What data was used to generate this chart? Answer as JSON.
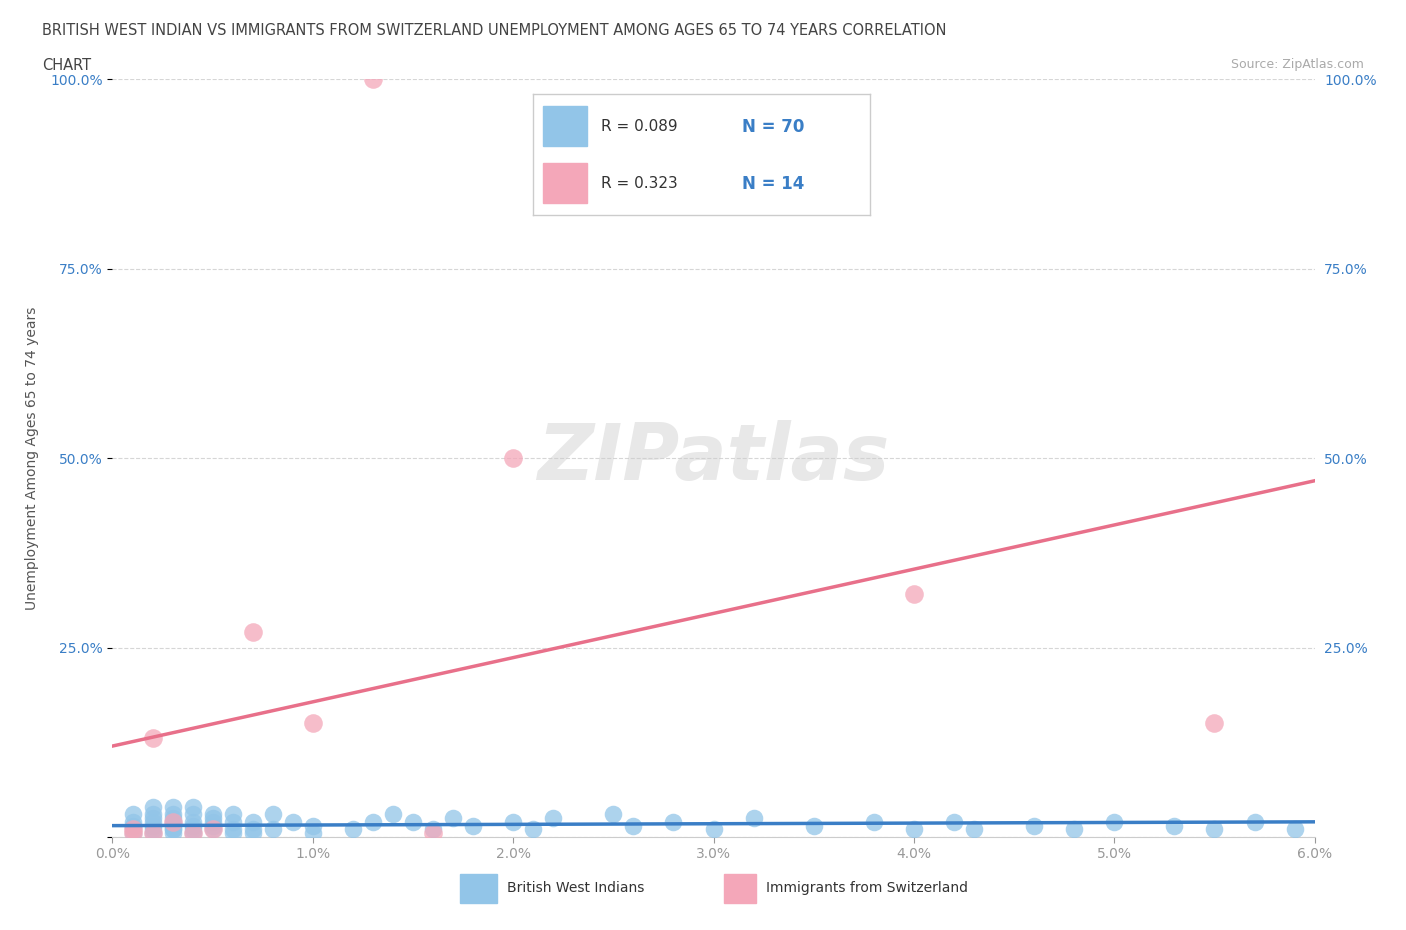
{
  "title_line1": "BRITISH WEST INDIAN VS IMMIGRANTS FROM SWITZERLAND UNEMPLOYMENT AMONG AGES 65 TO 74 YEARS CORRELATION",
  "title_line2": "CHART",
  "source": "Source: ZipAtlas.com",
  "ylabel": "Unemployment Among Ages 65 to 74 years",
  "xlim": [
    0.0,
    0.06
  ],
  "ylim": [
    0.0,
    1.0
  ],
  "xticks": [
    0.0,
    0.01,
    0.02,
    0.03,
    0.04,
    0.05,
    0.06
  ],
  "xticklabels": [
    "0.0%",
    "1.0%",
    "2.0%",
    "3.0%",
    "4.0%",
    "5.0%",
    "6.0%"
  ],
  "yticks": [
    0.0,
    0.25,
    0.5,
    0.75,
    1.0
  ],
  "yticklabels": [
    "",
    "25.0%",
    "50.0%",
    "75.0%",
    "100.0%"
  ],
  "blue_R": 0.089,
  "blue_N": 70,
  "pink_R": 0.323,
  "pink_N": 14,
  "blue_color": "#92C5E8",
  "pink_color": "#F4A7B9",
  "blue_line_color": "#3A7EC6",
  "pink_line_color": "#E8708A",
  "legend_label_blue": "British West Indians",
  "legend_label_pink": "Immigrants from Switzerland",
  "watermark": "ZIPatlas",
  "blue_x": [
    0.001,
    0.001,
    0.001,
    0.001,
    0.001,
    0.002,
    0.002,
    0.002,
    0.002,
    0.002,
    0.002,
    0.002,
    0.003,
    0.003,
    0.003,
    0.003,
    0.003,
    0.003,
    0.003,
    0.003,
    0.004,
    0.004,
    0.004,
    0.004,
    0.004,
    0.004,
    0.005,
    0.005,
    0.005,
    0.005,
    0.005,
    0.006,
    0.006,
    0.006,
    0.006,
    0.007,
    0.007,
    0.007,
    0.008,
    0.008,
    0.009,
    0.01,
    0.01,
    0.012,
    0.013,
    0.014,
    0.015,
    0.016,
    0.017,
    0.018,
    0.02,
    0.021,
    0.022,
    0.025,
    0.026,
    0.028,
    0.03,
    0.032,
    0.035,
    0.038,
    0.04,
    0.042,
    0.043,
    0.046,
    0.048,
    0.05,
    0.053,
    0.055,
    0.057,
    0.059
  ],
  "blue_y": [
    0.005,
    0.01,
    0.015,
    0.02,
    0.03,
    0.005,
    0.01,
    0.015,
    0.02,
    0.025,
    0.03,
    0.04,
    0.005,
    0.01,
    0.01,
    0.015,
    0.02,
    0.025,
    0.03,
    0.04,
    0.005,
    0.01,
    0.015,
    0.02,
    0.03,
    0.04,
    0.01,
    0.015,
    0.02,
    0.025,
    0.03,
    0.005,
    0.01,
    0.02,
    0.03,
    0.005,
    0.01,
    0.02,
    0.01,
    0.03,
    0.02,
    0.005,
    0.015,
    0.01,
    0.02,
    0.03,
    0.02,
    0.01,
    0.025,
    0.015,
    0.02,
    0.01,
    0.025,
    0.03,
    0.015,
    0.02,
    0.01,
    0.025,
    0.015,
    0.02,
    0.01,
    0.02,
    0.01,
    0.015,
    0.01,
    0.02,
    0.015,
    0.01,
    0.02,
    0.01
  ],
  "pink_x": [
    0.001,
    0.001,
    0.002,
    0.002,
    0.003,
    0.004,
    0.005,
    0.007,
    0.01,
    0.013,
    0.016,
    0.02,
    0.04,
    0.055
  ],
  "pink_y": [
    0.005,
    0.01,
    0.005,
    0.13,
    0.02,
    0.005,
    0.01,
    0.27,
    0.15,
    1.0,
    0.005,
    0.5,
    0.32,
    0.15
  ],
  "pink_line_x0": 0.0,
  "pink_line_y0": 0.12,
  "pink_line_x1": 0.06,
  "pink_line_y1": 0.47,
  "blue_line_x0": 0.0,
  "blue_line_y0": 0.015,
  "blue_line_x1": 0.06,
  "blue_line_y1": 0.02
}
